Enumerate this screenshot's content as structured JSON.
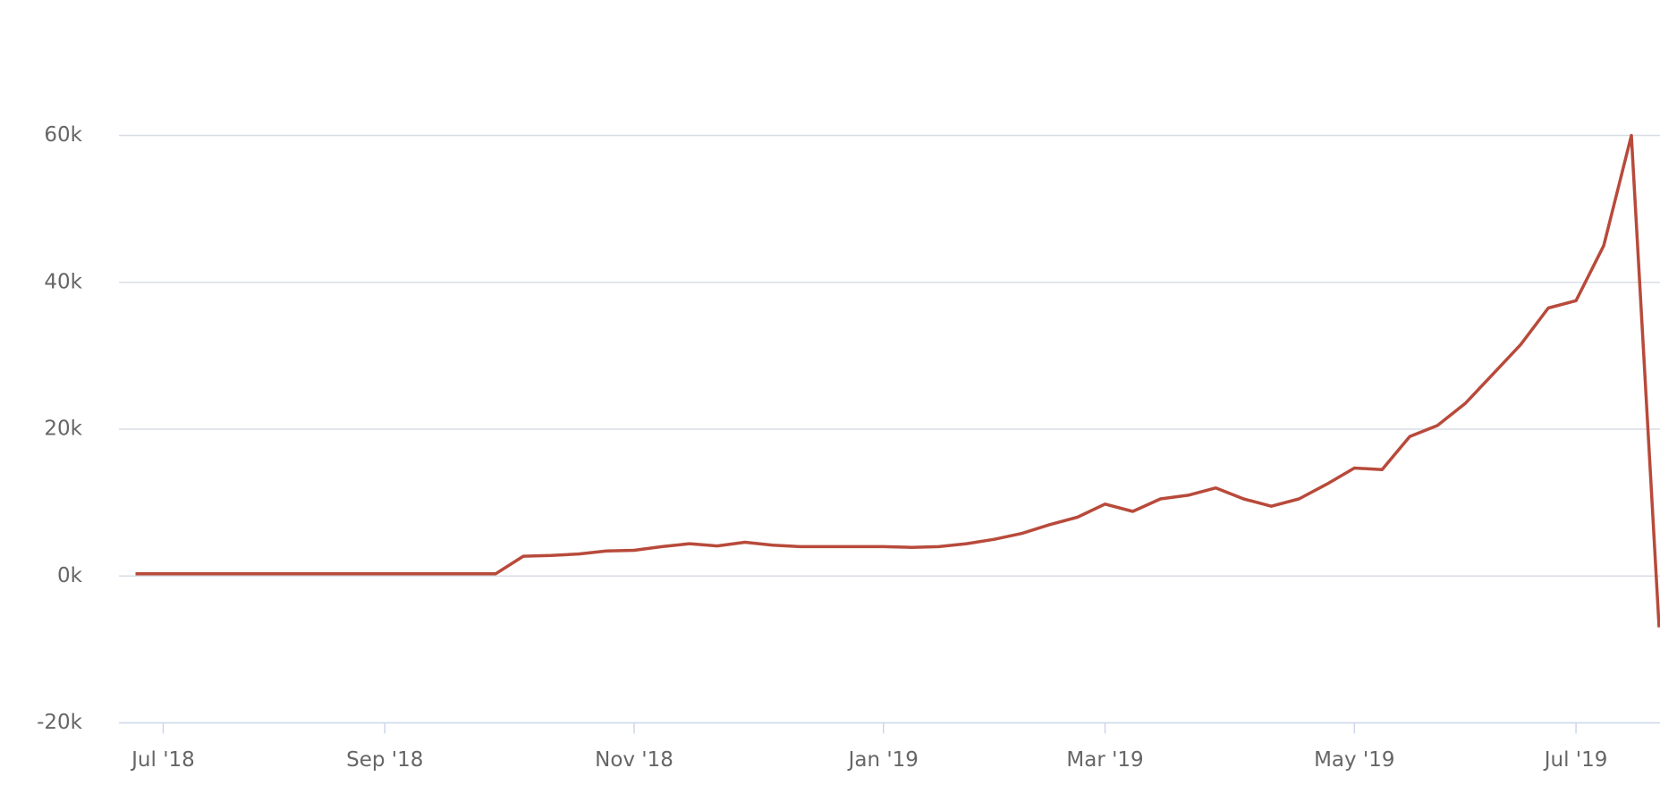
{
  "chart_data": {
    "type": "line",
    "categories": [
      null,
      "Jul '18",
      null,
      null,
      null,
      null,
      null,
      null,
      null,
      "Sep '18",
      null,
      null,
      null,
      null,
      null,
      null,
      null,
      null,
      "Nov '18",
      null,
      null,
      null,
      null,
      null,
      null,
      null,
      null,
      "Jan '19",
      null,
      null,
      null,
      null,
      null,
      null,
      null,
      "Mar '19",
      null,
      null,
      null,
      null,
      null,
      null,
      null,
      null,
      "May '19",
      null,
      null,
      null,
      null,
      null,
      null,
      null,
      "Jul '19",
      null,
      null,
      null
    ],
    "series": [
      {
        "color": "#b84a3b",
        "values": [
          300,
          300,
          300,
          300,
          300,
          300,
          300,
          300,
          300,
          300,
          300,
          300,
          300,
          300,
          2700,
          2800,
          3000,
          3400,
          3500,
          4000,
          4400,
          4100,
          4600,
          4200,
          4000,
          4000,
          4000,
          4000,
          3900,
          4000,
          4400,
          5000,
          5800,
          7000,
          8000,
          9800,
          8800,
          10500,
          11000,
          12000,
          10500,
          9500,
          10500,
          12500,
          14700,
          14500,
          19000,
          20500,
          23500,
          27500,
          31500,
          36500,
          37500,
          45000,
          60000,
          -7000
        ]
      }
    ],
    "ylim": [
      -20000,
      60000
    ],
    "yticks": [
      {
        "value": -20000,
        "label": "-20k"
      },
      {
        "value": 0,
        "label": "0k"
      },
      {
        "value": 20000,
        "label": "20k"
      },
      {
        "value": 40000,
        "label": "40k"
      },
      {
        "value": 60000,
        "label": "60k"
      }
    ],
    "grid": true
  }
}
